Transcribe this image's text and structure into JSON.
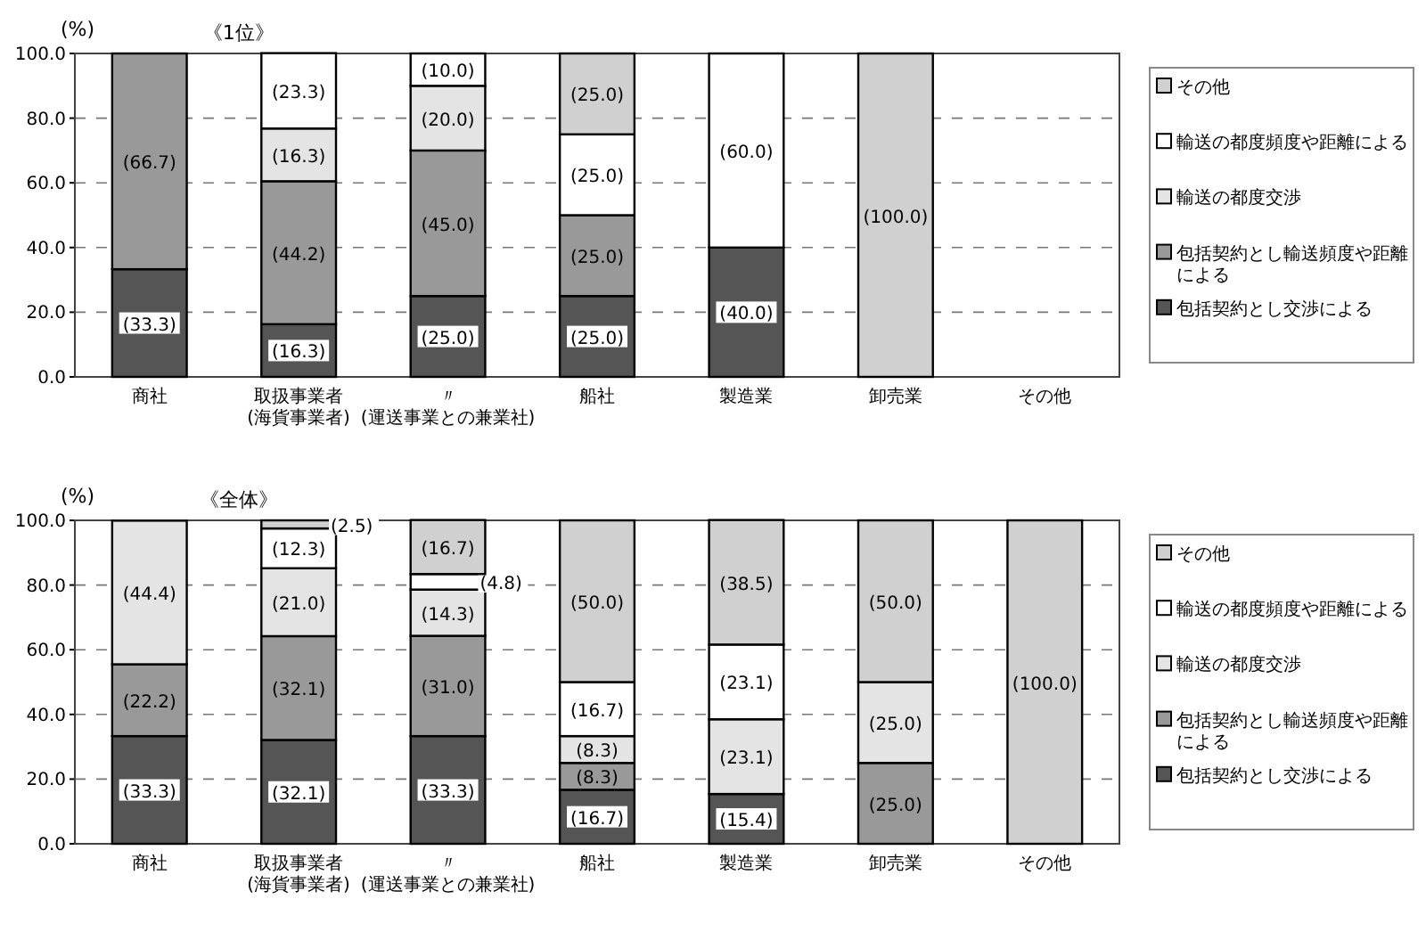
{
  "chart_data": [
    {
      "type": "bar",
      "stacked": true,
      "title": "《1位》",
      "ylabel": "(%)",
      "categories": [
        "商社",
        "取扱事業者\n(海貨事業者)",
        "〃\n(運送事業との兼業社)",
        "船社",
        "製造業",
        "卸売業",
        "その他"
      ],
      "ylim": [
        0,
        100
      ],
      "yticks": [
        {
          "value": 0,
          "label": "0.0"
        },
        {
          "value": 20,
          "label": "20.0"
        },
        {
          "value": 40,
          "label": "40.0"
        },
        {
          "value": 60,
          "label": "60.0"
        },
        {
          "value": 80,
          "label": "80.0"
        },
        {
          "value": 100,
          "label": "100.0"
        }
      ],
      "grid": "y",
      "legend": "right",
      "series": [
        {
          "name": "包括契約とし交渉による",
          "color": "#555555",
          "values": [
            33.3,
            16.3,
            25.0,
            25.0,
            40.0,
            null,
            null
          ],
          "value_labels": [
            "(33.3)",
            "(16.3)",
            "(25.0)",
            "(25.0)",
            "(40.0)",
            null,
            null
          ]
        },
        {
          "name": "包括契約とし輸送頻度や距離による",
          "color": "#999999",
          "values": [
            66.7,
            44.2,
            45.0,
            25.0,
            null,
            null,
            null
          ],
          "value_labels": [
            "(66.7)",
            "(44.2)",
            "(45.0)",
            "(25.0)",
            null,
            null,
            null
          ]
        },
        {
          "name": "輸送の都度交渉",
          "color": "#e4e4e4",
          "values": [
            null,
            16.3,
            20.0,
            null,
            null,
            null,
            null
          ],
          "value_labels": [
            null,
            "(16.3)",
            "(20.0)",
            null,
            null,
            null,
            null
          ]
        },
        {
          "name": "輸送の都度頻度や距離による",
          "color": "#ffffff",
          "values": [
            null,
            23.3,
            10.0,
            25.0,
            60.0,
            null,
            null
          ],
          "value_labels": [
            null,
            "(23.3)",
            "(10.0)",
            "(25.0)",
            "(60.0)",
            null,
            null
          ]
        },
        {
          "name": "その他",
          "color": "#d0d0d0",
          "values": [
            null,
            null,
            null,
            25.0,
            null,
            100.0,
            null
          ],
          "value_labels": [
            null,
            null,
            null,
            "(25.0)",
            null,
            "(100.0)",
            null
          ]
        }
      ]
    },
    {
      "type": "bar",
      "stacked": true,
      "title": "《全体》",
      "ylabel": "(%)",
      "categories": [
        "商社",
        "取扱事業者\n(海貨事業者)",
        "〃\n(運送事業との兼業社)",
        "船社",
        "製造業",
        "卸売業",
        "その他"
      ],
      "ylim": [
        0,
        100
      ],
      "yticks": [
        {
          "value": 0,
          "label": "0.0"
        },
        {
          "value": 20,
          "label": "20.0"
        },
        {
          "value": 40,
          "label": "40.0"
        },
        {
          "value": 60,
          "label": "60.0"
        },
        {
          "value": 80,
          "label": "80.0"
        },
        {
          "value": 100,
          "label": "100.0"
        }
      ],
      "grid": "y",
      "legend": "right",
      "series": [
        {
          "name": "包括契約とし交渉による",
          "color": "#555555",
          "values": [
            33.3,
            32.1,
            33.3,
            16.7,
            15.4,
            null,
            null
          ],
          "value_labels": [
            "(33.3)",
            "(32.1)",
            "(33.3)",
            "(16.7)",
            "(15.4)",
            null,
            null
          ]
        },
        {
          "name": "包括契約とし輸送頻度や距離による",
          "color": "#999999",
          "values": [
            22.2,
            32.1,
            31.0,
            8.3,
            null,
            25.0,
            null
          ],
          "value_labels": [
            "(22.2)",
            "(32.1)",
            "(31.0)",
            "(8.3)",
            null,
            "(25.0)",
            null
          ]
        },
        {
          "name": "輸送の都度交渉",
          "color": "#e4e4e4",
          "values": [
            44.4,
            21.0,
            14.3,
            8.3,
            23.1,
            25.0,
            null
          ],
          "value_labels": [
            "(44.4)",
            "(21.0)",
            "(14.3)",
            "(8.3)",
            "(23.1)",
            "(25.0)",
            null
          ]
        },
        {
          "name": "輸送の都度頻度や距離による",
          "color": "#ffffff",
          "values": [
            null,
            12.3,
            4.8,
            16.7,
            23.1,
            null,
            null
          ],
          "value_labels": [
            null,
            "(12.3)",
            "(4.8)",
            "(16.7)",
            "(23.1)",
            null,
            null
          ]
        },
        {
          "name": "その他",
          "color": "#d0d0d0",
          "values": [
            null,
            2.5,
            16.7,
            50.0,
            38.5,
            50.0,
            100.0
          ],
          "value_labels": [
            null,
            "(2.5)",
            "(16.7)",
            "(50.0)",
            "(38.5)",
            "(50.0)",
            "(100.0)"
          ]
        }
      ]
    }
  ]
}
